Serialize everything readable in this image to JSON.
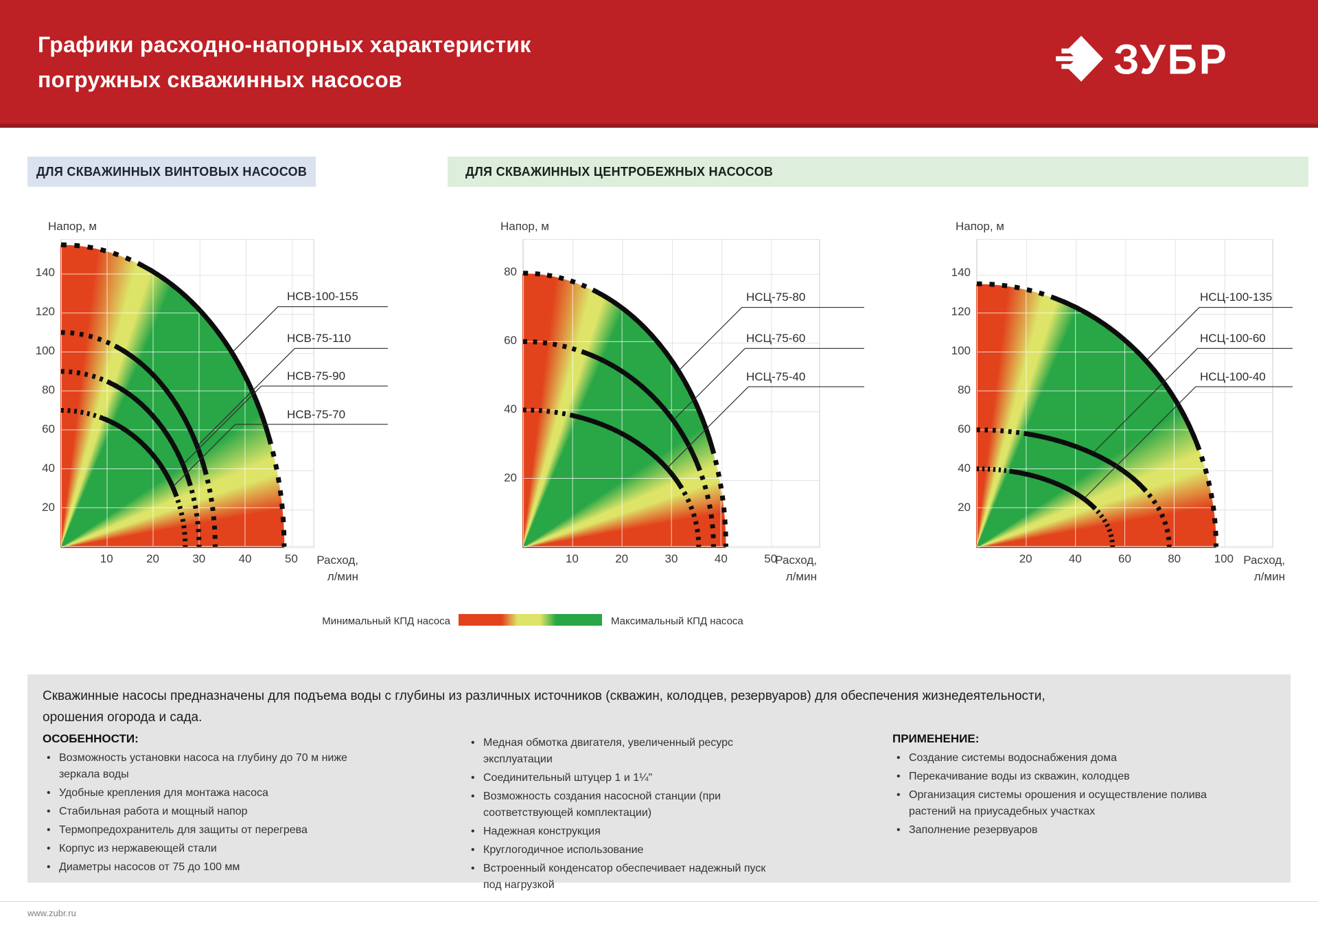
{
  "header": {
    "title_line1": "Графики расходно-напорных характеристик",
    "title_line2": "погружных скважинных насосов",
    "brand": "ЗУБР"
  },
  "sections": {
    "screw": "ДЛЯ СКВАЖИННЫХ ВИНТОВЫХ НАСОСОВ",
    "centrifugal": "ДЛЯ СКВАЖИННЫХ ЦЕНТРОБЕЖНЫХ НАСОСОВ"
  },
  "chart_data": [
    {
      "type": "area",
      "title": "Расходно-напорные характеристики винтовых насосов",
      "ylabel": "Напор, м",
      "xlabel_line1": "Расход,",
      "xlabel_line2": "л/мин",
      "xlim": [
        0,
        55
      ],
      "ylim": [
        0,
        158
      ],
      "x_ticks": [
        10,
        20,
        30,
        40,
        50
      ],
      "y_ticks": [
        20,
        40,
        60,
        80,
        100,
        120,
        140
      ],
      "grid": true,
      "series": [
        {
          "name": "НСВ-100-155",
          "head_at_zero_flow_m": 155,
          "max_flow_l_min": 48.5
        },
        {
          "name": "НСВ-75-110",
          "head_at_zero_flow_m": 110,
          "max_flow_l_min": 33.5
        },
        {
          "name": "НСВ-75-90",
          "head_at_zero_flow_m": 90,
          "max_flow_l_min": 30
        },
        {
          "name": "НСВ-75-70",
          "head_at_zero_flow_m": 70,
          "max_flow_l_min": 27
        }
      ]
    },
    {
      "type": "area",
      "title": "Расходно-напорные характеристики центробежных насосов НСЦ-75",
      "ylabel": "Напор, м",
      "xlabel_line1": "Расход,",
      "xlabel_line2": "л/мин",
      "xlim": [
        0,
        60
      ],
      "ylim": [
        0,
        90
      ],
      "x_ticks": [
        10,
        20,
        30,
        40,
        50
      ],
      "y_ticks": [
        20,
        40,
        60,
        80
      ],
      "grid": true,
      "series": [
        {
          "name": "НСЦ-75-80",
          "head_at_zero_flow_m": 80,
          "max_flow_l_min": 41
        },
        {
          "name": "НСЦ-75-60",
          "head_at_zero_flow_m": 60,
          "max_flow_l_min": 38.5
        },
        {
          "name": "НСЦ-75-40",
          "head_at_zero_flow_m": 40,
          "max_flow_l_min": 35.5
        }
      ]
    },
    {
      "type": "area",
      "title": "Расходно-напорные характеристики центробежных насосов НСЦ-100",
      "ylabel": "Напор, м",
      "xlabel_line1": "Расход,",
      "xlabel_line2": "л/мин",
      "xlim": [
        0,
        120
      ],
      "ylim": [
        0,
        158
      ],
      "x_ticks": [
        20,
        40,
        60,
        80,
        100
      ],
      "y_ticks": [
        20,
        40,
        60,
        80,
        100,
        120,
        140
      ],
      "grid": true,
      "series": [
        {
          "name": "НСЦ-100-135",
          "head_at_zero_flow_m": 135,
          "max_flow_l_min": 97
        },
        {
          "name": "НСЦ-100-60",
          "head_at_zero_flow_m": 60,
          "max_flow_l_min": 78
        },
        {
          "name": "НСЦ-100-40",
          "head_at_zero_flow_m": 40,
          "max_flow_l_min": 55
        }
      ]
    }
  ],
  "legend": {
    "min_label": "Минимальный КПД насоса",
    "max_label": "Максимальный КПД насоса"
  },
  "info": {
    "intro_line1": "Скважинные насосы предназначены для подъема воды с глубины из различных источников (скважин, колодцев, резервуаров) для обеспечения жизнедеятельности,",
    "intro_line2": "орошения огорода и сада.",
    "features_title": "ОСОБЕННОСТИ:",
    "features": [
      "Возможность установки насоса на глубину до 70 м ниже зеркала воды",
      "Удобные крепления для монтажа насоса",
      "Стабильная работа и мощный напор",
      "Термопредохранитель для защиты от перегрева",
      "Корпус из нержавеющей стали",
      "Диаметры насосов от 75 до 100 мм"
    ],
    "features_extra": [
      "Медная обмотка двигателя, увеличенный ресурс эксплуатации",
      "Соединительный штуцер 1 и 1¼\"",
      "Возможность создания насосной станции (при соответствующей комплектации)",
      "Надежная конструкция",
      "Круглогодичное использование",
      "Встроенный конденсатор обеспечивает надежный пуск под нагрузкой"
    ],
    "applications_title": "ПРИМЕНЕНИЕ:",
    "applications": [
      "Создание системы водоснабжения дома",
      "Перекачивание воды из скважин, колодцев",
      "Организация системы орошения и осуществление полива растений на приусадебных участках",
      "Заполнение резервуаров"
    ]
  },
  "footer": {
    "site": "www.zubr.ru"
  },
  "colors": {
    "brand_red": "#bd2025",
    "banner_strip": "#951b20",
    "section_screw_bg": "#dbe2ef",
    "section_centrifugal_bg": "#ddeedd",
    "grid": "#e2e2e2",
    "curve": "#0d0d0d",
    "eff_min": "#e2431c",
    "eff_mid": "#dde468",
    "eff_max": "#29a646",
    "panel_bg": "#e4e4e4"
  }
}
